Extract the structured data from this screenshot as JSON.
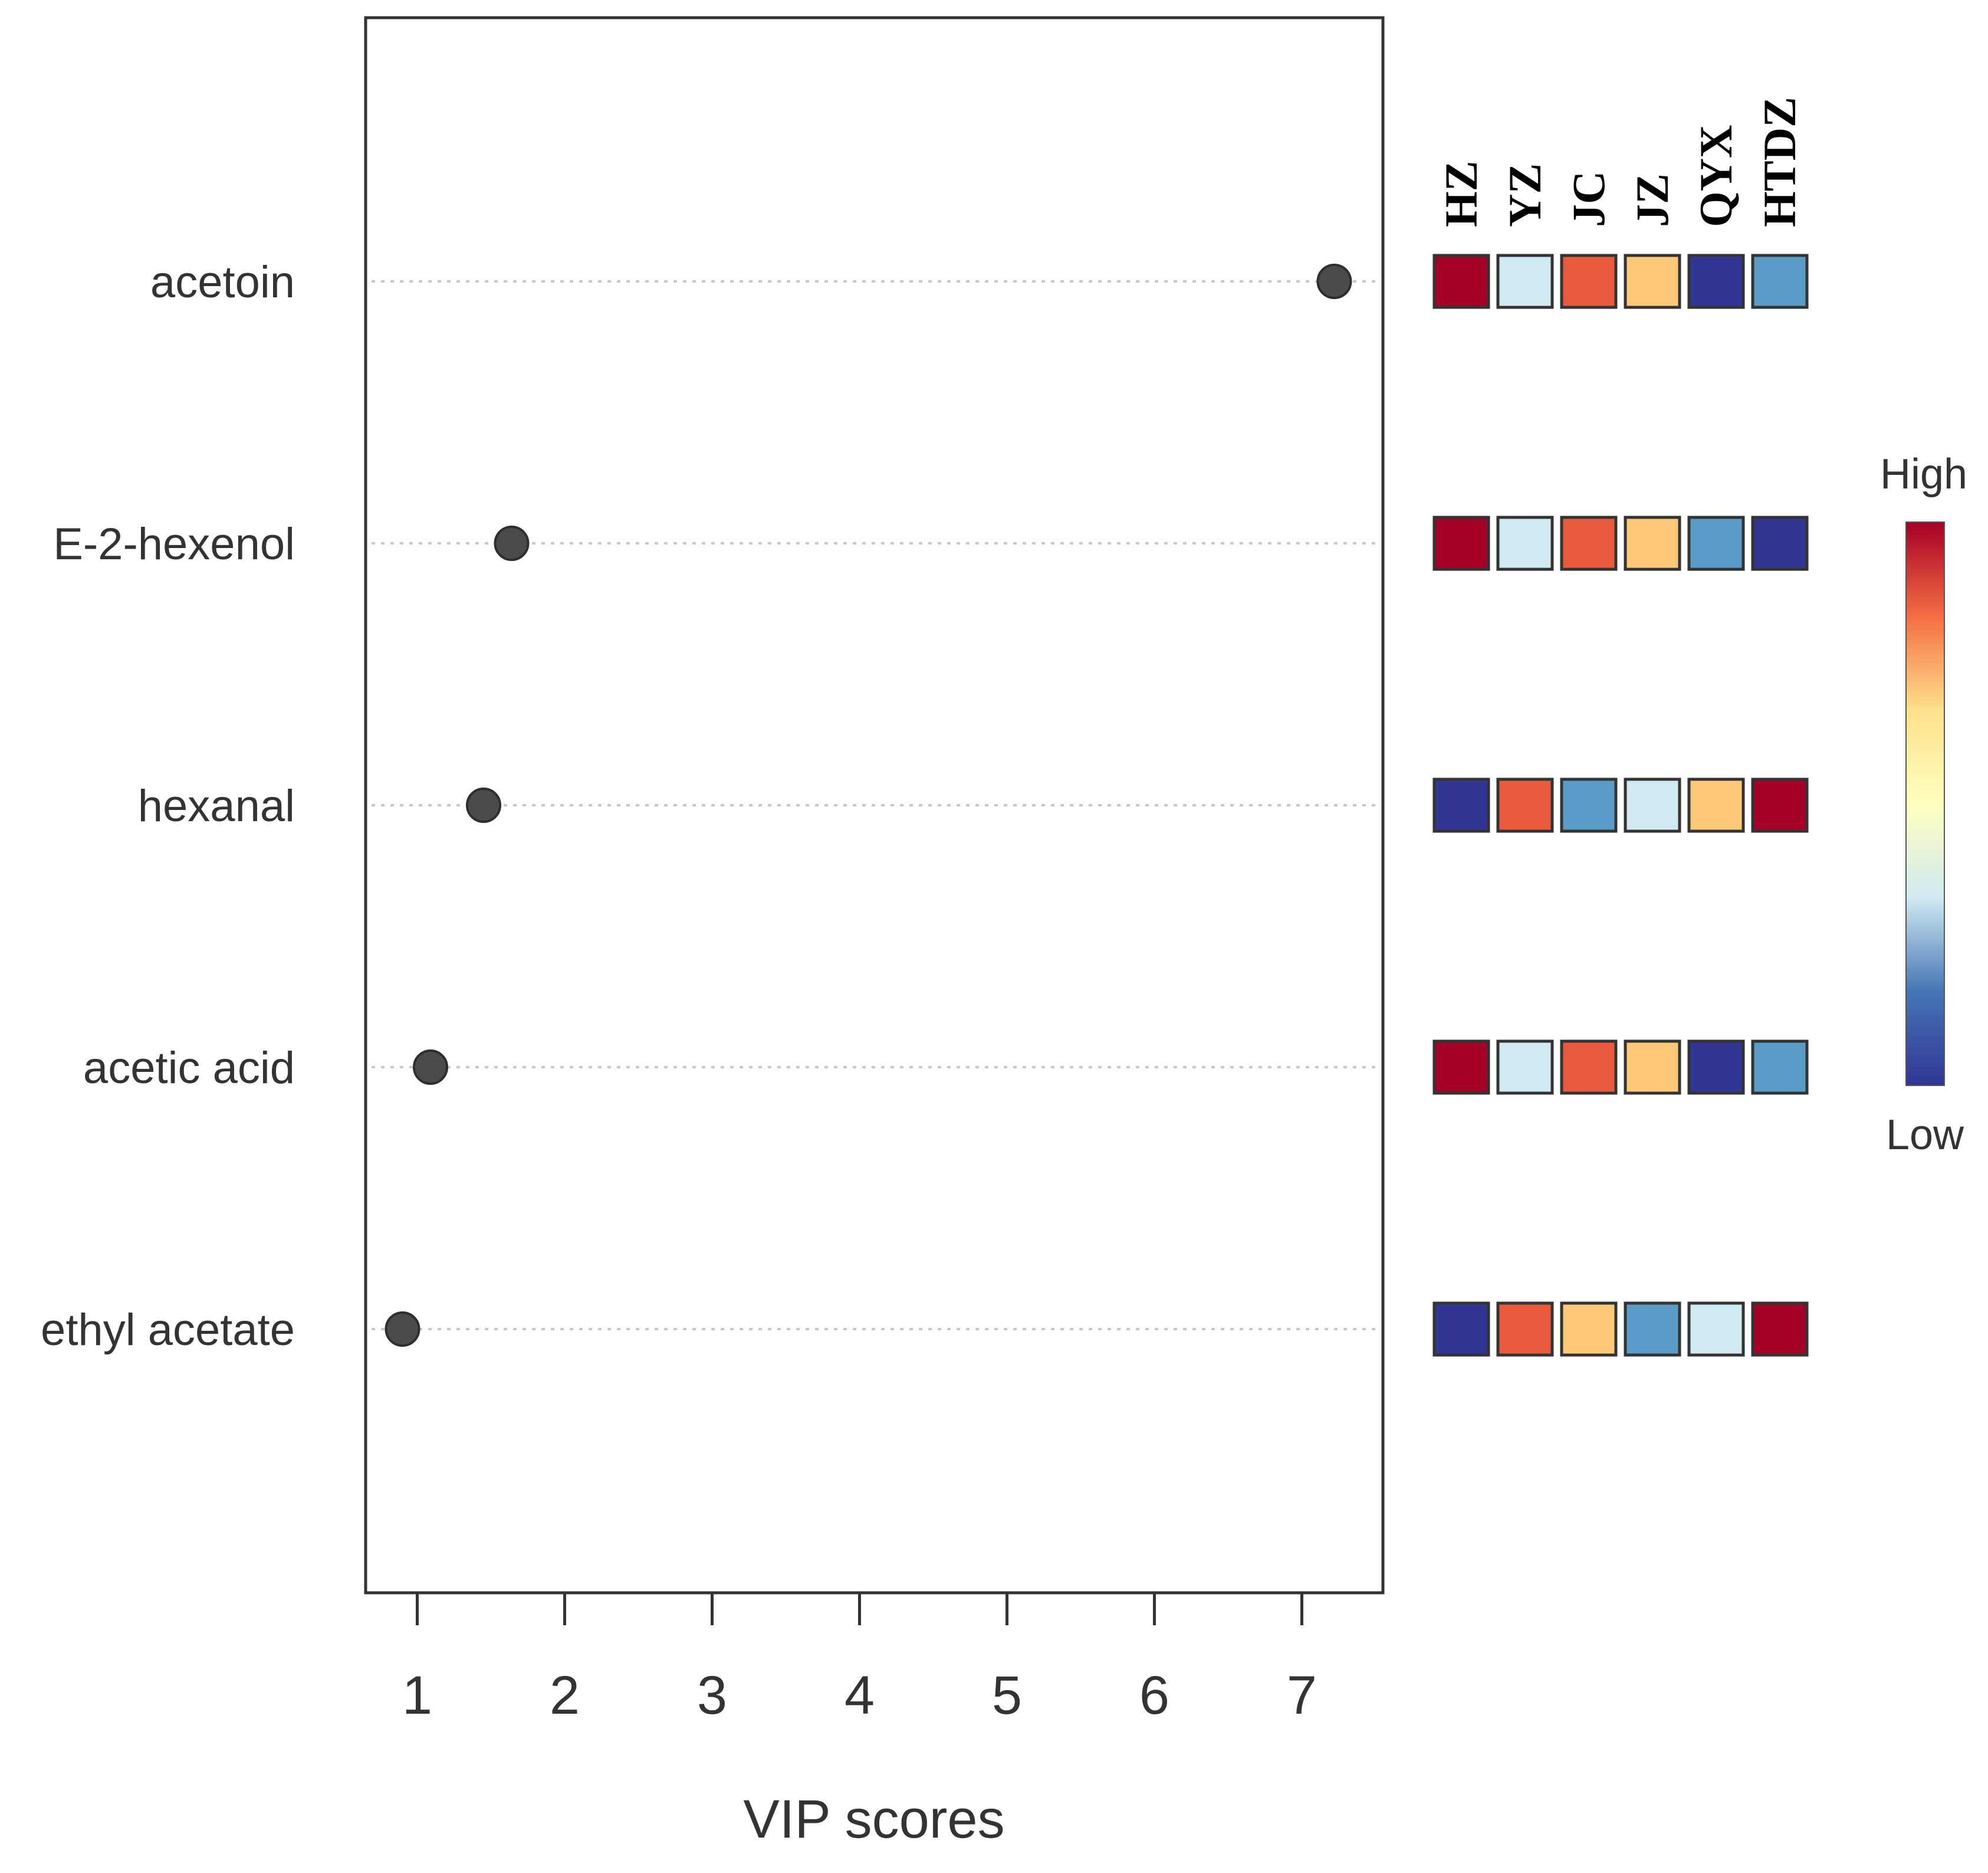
{
  "chart_data": {
    "type": "scatter",
    "subtype": "VIP score dot plot with group heatmap",
    "title": "",
    "xlabel": "VIP scores",
    "ylabel": "",
    "xlim": [
      0.65,
      7.55
    ],
    "xticks": [
      1,
      2,
      3,
      4,
      5,
      6,
      7
    ],
    "grid": "horizontal dotted guide lines",
    "compounds": [
      "acetoin",
      "E-2-hexenol",
      "hexanal",
      "acetic acid",
      "ethyl acetate"
    ],
    "vip_scores": [
      7.22,
      1.64,
      1.45,
      1.09,
      0.9
    ],
    "groups": [
      "HZ",
      "YZ",
      "JC",
      "JZ",
      "QYX",
      "HTDZ"
    ],
    "heatmap_levels": [
      [
        6,
        2,
        5,
        4,
        1,
        3
      ],
      [
        6,
        2,
        5,
        4,
        3,
        1
      ],
      [
        1,
        5,
        3,
        2,
        4,
        6
      ],
      [
        6,
        2,
        5,
        4,
        1,
        3
      ],
      [
        1,
        5,
        4,
        3,
        2,
        6
      ]
    ],
    "level_colors": {
      "1": "#313695",
      "2": "#d1eaf2",
      "3": "#5a9bc8",
      "4": "#fdc877",
      "5": "#ea5a3c",
      "6": "#a50026"
    },
    "legend": {
      "high_label": "High",
      "low_label": "Low",
      "gradient": [
        "#a50026",
        "#f46d43",
        "#fee08b",
        "#ffffbf",
        "#d1eaf2",
        "#4575b4",
        "#313695"
      ],
      "placement": "right"
    },
    "point_color": "#4a4a4a",
    "guide_color": "#c8c8c8"
  }
}
